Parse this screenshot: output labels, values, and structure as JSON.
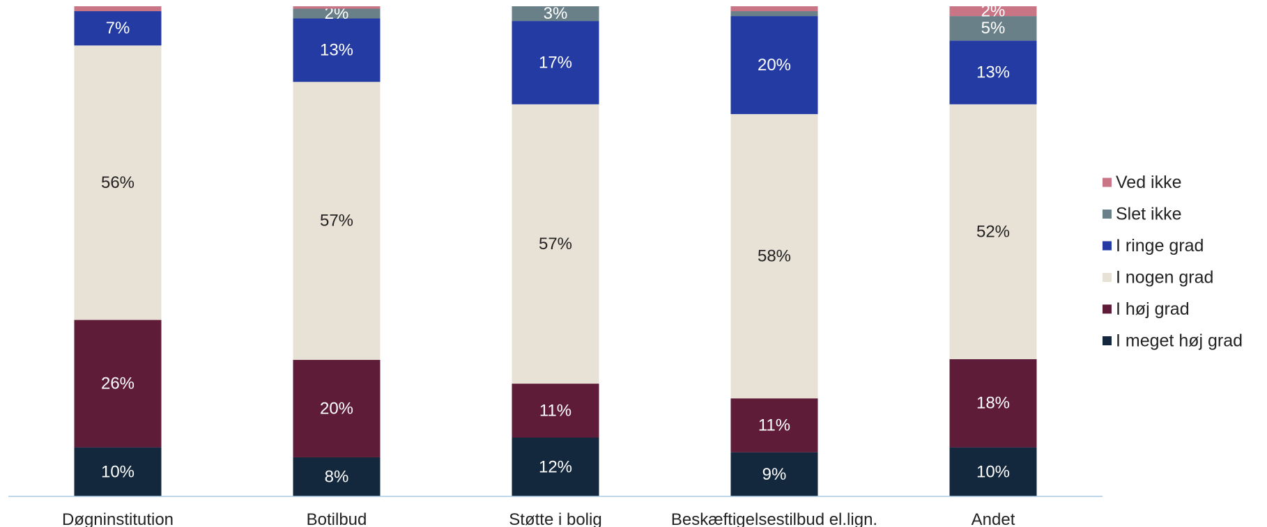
{
  "chart_data": {
    "type": "bar",
    "stacked": true,
    "categories": [
      "Døgninstitution",
      "Botilbud",
      "Støtte i bolig",
      "Beskæftigelsestilbud el.lign.",
      "Andet"
    ],
    "series": [
      {
        "name": "I meget høj grad",
        "color": "#13273d",
        "values": [
          10,
          8,
          12,
          9,
          10
        ],
        "labels": [
          "10%",
          "8%",
          "12%",
          "9%",
          "10%"
        ]
      },
      {
        "name": "I høj grad",
        "color": "#5e1c38",
        "values": [
          26,
          20,
          11,
          11,
          18
        ],
        "labels": [
          "26%",
          "20%",
          "11%",
          "11%",
          "18%"
        ]
      },
      {
        "name": "I nogen grad",
        "color": "#e8e1d6",
        "values": [
          56,
          57,
          57,
          58,
          52
        ],
        "labels": [
          "56%",
          "57%",
          "57%",
          "58%",
          "52%"
        ]
      },
      {
        "name": "I ringe grad",
        "color": "#233ba3",
        "values": [
          7,
          13,
          17,
          20,
          13
        ],
        "labels": [
          "7%",
          "13%",
          "17%",
          "20%",
          "13%"
        ]
      },
      {
        "name": "Slet ikke",
        "color": "#6a8088",
        "values": [
          0,
          2,
          3,
          1,
          5
        ],
        "labels": [
          "",
          "2%",
          "3%",
          "",
          "5%"
        ]
      },
      {
        "name": "Ved ikke",
        "color": "#c97585",
        "values": [
          1,
          0.5,
          0,
          1,
          2
        ],
        "labels": [
          "",
          "",
          "",
          "",
          "2%"
        ]
      }
    ],
    "legend_position": "right",
    "legend_order": [
      "Ved ikke",
      "Slet ikke",
      "I ringe grad",
      "I nogen grad",
      "I høj grad",
      "I meget høj grad"
    ],
    "grid": false,
    "ylim": [
      0,
      100
    ],
    "axis_color": "#a9c9e3"
  }
}
